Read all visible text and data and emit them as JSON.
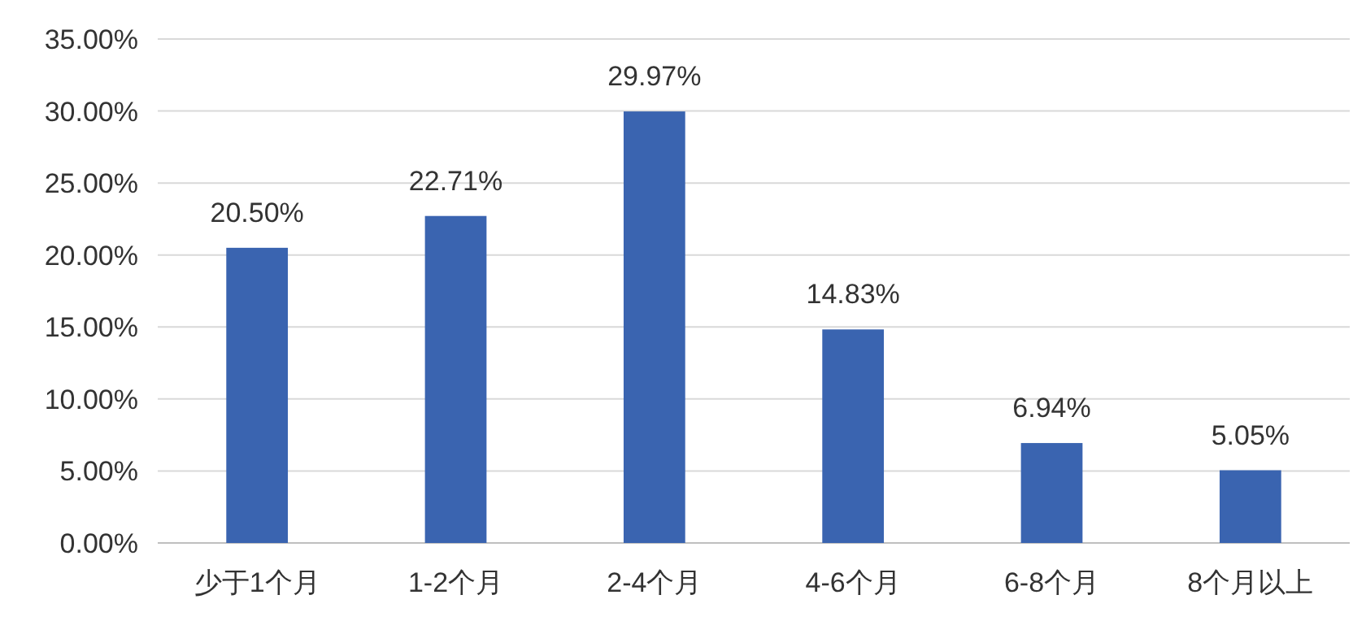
{
  "chart_data": {
    "type": "bar",
    "categories": [
      "少于1个月",
      "1-2个月",
      "2-4个月",
      "4-6个月",
      "6-8个月",
      "8个月以上"
    ],
    "values": [
      20.5,
      22.71,
      29.97,
      14.83,
      6.94,
      5.05
    ],
    "value_labels": [
      "20.50%",
      "22.71%",
      "29.97%",
      "14.83%",
      "6.94%",
      "5.05%"
    ],
    "color": "#3a64b0",
    "ylim": [
      0,
      35
    ],
    "yticks": [
      {
        "value": 0,
        "label": "0.00%"
      },
      {
        "value": 5,
        "label": "5.00%"
      },
      {
        "value": 10,
        "label": "10.00%"
      },
      {
        "value": 15,
        "label": "15.00%"
      },
      {
        "value": 20,
        "label": "20.00%"
      },
      {
        "value": 25,
        "label": "25.00%"
      },
      {
        "value": 30,
        "label": "30.00%"
      },
      {
        "value": 35,
        "label": "35.00%"
      }
    ],
    "grid": "y"
  }
}
